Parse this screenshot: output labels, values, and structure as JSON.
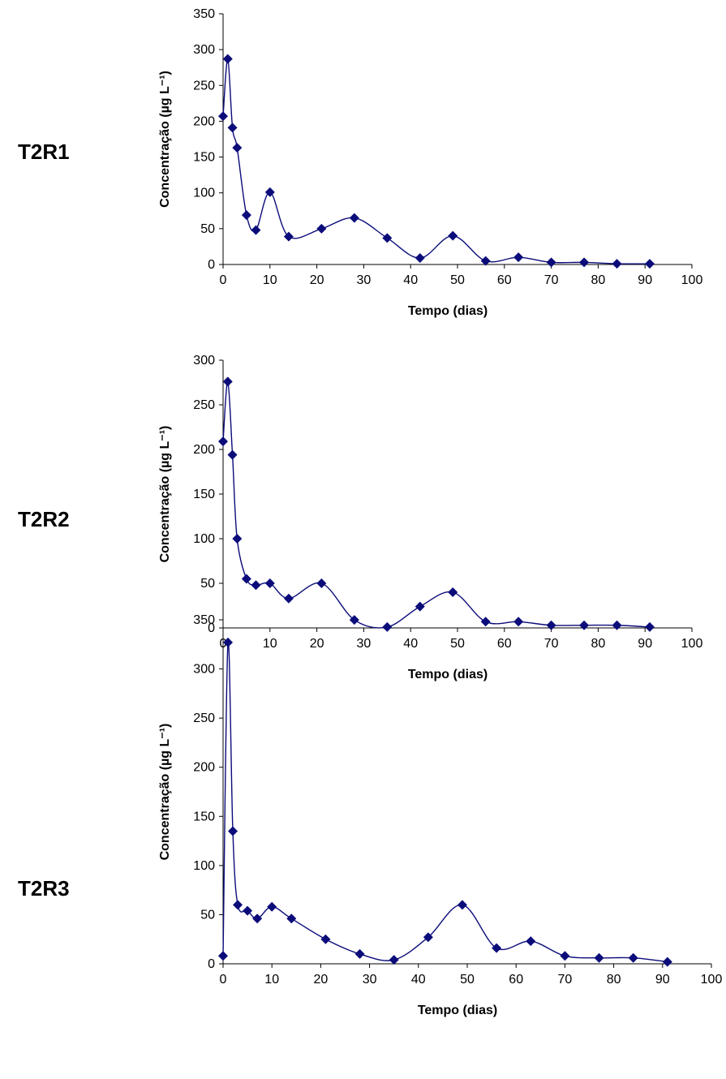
{
  "colors": {
    "series": "#0b0c7a",
    "axis": "#000000"
  },
  "chart_data": [
    {
      "type": "line",
      "panel_label": "T2R1",
      "xlabel": "Tempo (dias)",
      "ylabel": "Concentração (µg L⁻¹)",
      "xlim": [
        0,
        100
      ],
      "ylim": [
        0,
        350
      ],
      "xticks": [
        0,
        10,
        20,
        30,
        40,
        50,
        60,
        70,
        80,
        90,
        100
      ],
      "yticks": [
        0,
        50,
        100,
        150,
        200,
        250,
        300,
        350
      ],
      "grid": false,
      "series": [
        {
          "x": [
            0,
            1,
            2,
            3,
            5,
            7,
            10,
            14,
            21,
            28,
            35,
            42,
            49,
            56,
            63,
            70,
            77,
            84,
            91
          ],
          "y": [
            207,
            287,
            191,
            163,
            69,
            48,
            101,
            39,
            50,
            65,
            37,
            9,
            40,
            5,
            10,
            3,
            3,
            1,
            1
          ]
        }
      ]
    },
    {
      "type": "line",
      "panel_label": "T2R2",
      "xlabel": "Tempo (dias)",
      "ylabel": "Concentração (µg L⁻¹)",
      "xlim": [
        0,
        100
      ],
      "ylim": [
        0,
        300
      ],
      "xticks": [
        0,
        10,
        20,
        30,
        40,
        50,
        60,
        70,
        80,
        90,
        100
      ],
      "yticks": [
        0,
        50,
        100,
        150,
        200,
        250,
        300
      ],
      "grid": false,
      "series": [
        {
          "x": [
            0,
            1,
            2,
            3,
            5,
            7,
            10,
            14,
            21,
            28,
            35,
            42,
            49,
            56,
            63,
            70,
            77,
            84,
            91
          ],
          "y": [
            209,
            276,
            194,
            100,
            55,
            48,
            50,
            33,
            50,
            9,
            1,
            24,
            40,
            7,
            7,
            3,
            3,
            3,
            1
          ]
        }
      ]
    },
    {
      "type": "line",
      "panel_label": "T2R3",
      "xlabel": "Tempo (dias)",
      "ylabel": "Concentração (µg L⁻¹)",
      "xlim": [
        0,
        100
      ],
      "ylim": [
        0,
        350
      ],
      "xticks": [
        0,
        10,
        20,
        30,
        40,
        50,
        60,
        70,
        80,
        90,
        100
      ],
      "yticks": [
        0,
        50,
        100,
        150,
        200,
        250,
        300,
        350
      ],
      "grid": false,
      "series": [
        {
          "x": [
            0,
            1,
            2,
            3,
            5,
            7,
            10,
            14,
            21,
            28,
            35,
            42,
            49,
            56,
            63,
            70,
            77,
            84,
            91
          ],
          "y": [
            8,
            327,
            135,
            60,
            54,
            46,
            58,
            46,
            25,
            10,
            4,
            27,
            60,
            16,
            23,
            8,
            6,
            6,
            2
          ]
        }
      ]
    }
  ]
}
